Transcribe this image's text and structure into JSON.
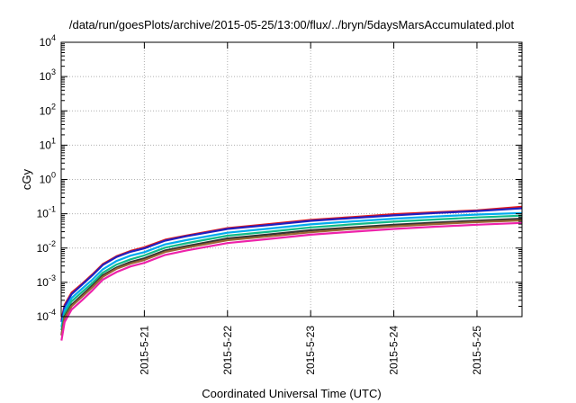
{
  "chart_data": {
    "type": "line",
    "title": "/data/run/goesPlots/archive/2015-05-25/13:00/flux/../bryn/5daysMarsAccumulated.plot",
    "xlabel": "Coordinated Universal Time (UTC)",
    "ylabel": "cGy",
    "y_scale": "log",
    "ylim": [
      0.0001,
      10000
    ],
    "y_ticks": [
      {
        "base": "10",
        "exp": "-4",
        "value": 0.0001
      },
      {
        "base": "10",
        "exp": "-3",
        "value": 0.001
      },
      {
        "base": "10",
        "exp": "-2",
        "value": 0.01
      },
      {
        "base": "10",
        "exp": "-1",
        "value": 0.1
      },
      {
        "base": "10",
        "exp": "0",
        "value": 1
      },
      {
        "base": "10",
        "exp": "1",
        "value": 10
      },
      {
        "base": "10",
        "exp": "2",
        "value": 100
      },
      {
        "base": "10",
        "exp": "3",
        "value": 1000
      },
      {
        "base": "10",
        "exp": "4",
        "value": 10000
      }
    ],
    "xlim": [
      "2015-05-20",
      "2015-05-25T13:00"
    ],
    "x_ticks": [
      "2015-5-21",
      "2015-5-22",
      "2015-5-23",
      "2015-5-24",
      "2015-5-25"
    ],
    "grid": true,
    "x": [
      "2015-05-20T00:05",
      "2015-05-20T01:00",
      "2015-05-20T03:00",
      "2015-05-20T06:00",
      "2015-05-20T09:00",
      "2015-05-20T12:00",
      "2015-05-20T16:00",
      "2015-05-20T20:00",
      "2015-05-21T00:00",
      "2015-05-21T06:00",
      "2015-05-21T12:00",
      "2015-05-22T00:00",
      "2015-05-22T12:00",
      "2015-05-23T00:00",
      "2015-05-23T12:00",
      "2015-05-24T00:00",
      "2015-05-24T12:00",
      "2015-05-25T00:00",
      "2015-05-25T13:00"
    ],
    "series": [
      {
        "color": "#e41a1c",
        "values": [
          8e-05,
          0.00022,
          0.0005,
          0.0009,
          0.0017,
          0.0034,
          0.0058,
          0.0082,
          0.0105,
          0.0175,
          0.023,
          0.038,
          0.05,
          0.066,
          0.08,
          0.097,
          0.11,
          0.125,
          0.16
        ]
      },
      {
        "color": "#2020c0",
        "values": [
          7e-05,
          0.0002,
          0.00045,
          0.00085,
          0.0016,
          0.0032,
          0.0055,
          0.0078,
          0.0098,
          0.0165,
          0.022,
          0.036,
          0.047,
          0.062,
          0.075,
          0.09,
          0.105,
          0.12,
          0.145
        ]
      },
      {
        "color": "#00aaee",
        "values": [
          5e-05,
          0.00015,
          0.00035,
          0.00065,
          0.0012,
          0.0024,
          0.0042,
          0.006,
          0.0076,
          0.0128,
          0.017,
          0.028,
          0.037,
          0.049,
          0.06,
          0.072,
          0.083,
          0.095,
          0.105
        ]
      },
      {
        "color": "#11bb88",
        "values": [
          4e-05,
          0.00012,
          0.00028,
          0.00052,
          0.00095,
          0.0019,
          0.0033,
          0.0047,
          0.0061,
          0.0103,
          0.0137,
          0.023,
          0.03,
          0.04,
          0.049,
          0.059,
          0.068,
          0.078,
          0.088
        ]
      },
      {
        "color": "#333333",
        "values": [
          3e-05,
          0.0001,
          0.00022,
          0.00042,
          0.0008,
          0.0016,
          0.0027,
          0.0039,
          0.005,
          0.0085,
          0.0113,
          0.019,
          0.025,
          0.033,
          0.04,
          0.048,
          0.055,
          0.063,
          0.072
        ]
      },
      {
        "color": "#996633",
        "values": [
          2.8e-05,
          9.2e-05,
          0.0002,
          0.00038,
          0.00072,
          0.00145,
          0.0025,
          0.0035,
          0.0045,
          0.0077,
          0.0102,
          0.017,
          0.022,
          0.029,
          0.036,
          0.043,
          0.05,
          0.057,
          0.064
        ]
      },
      {
        "color": "#ee22aa",
        "values": [
          2e-05,
          7e-05,
          0.00016,
          0.0003,
          0.00058,
          0.0012,
          0.002,
          0.0029,
          0.0037,
          0.0063,
          0.0084,
          0.014,
          0.0185,
          0.0245,
          0.03,
          0.036,
          0.042,
          0.048,
          0.054
        ]
      }
    ]
  }
}
